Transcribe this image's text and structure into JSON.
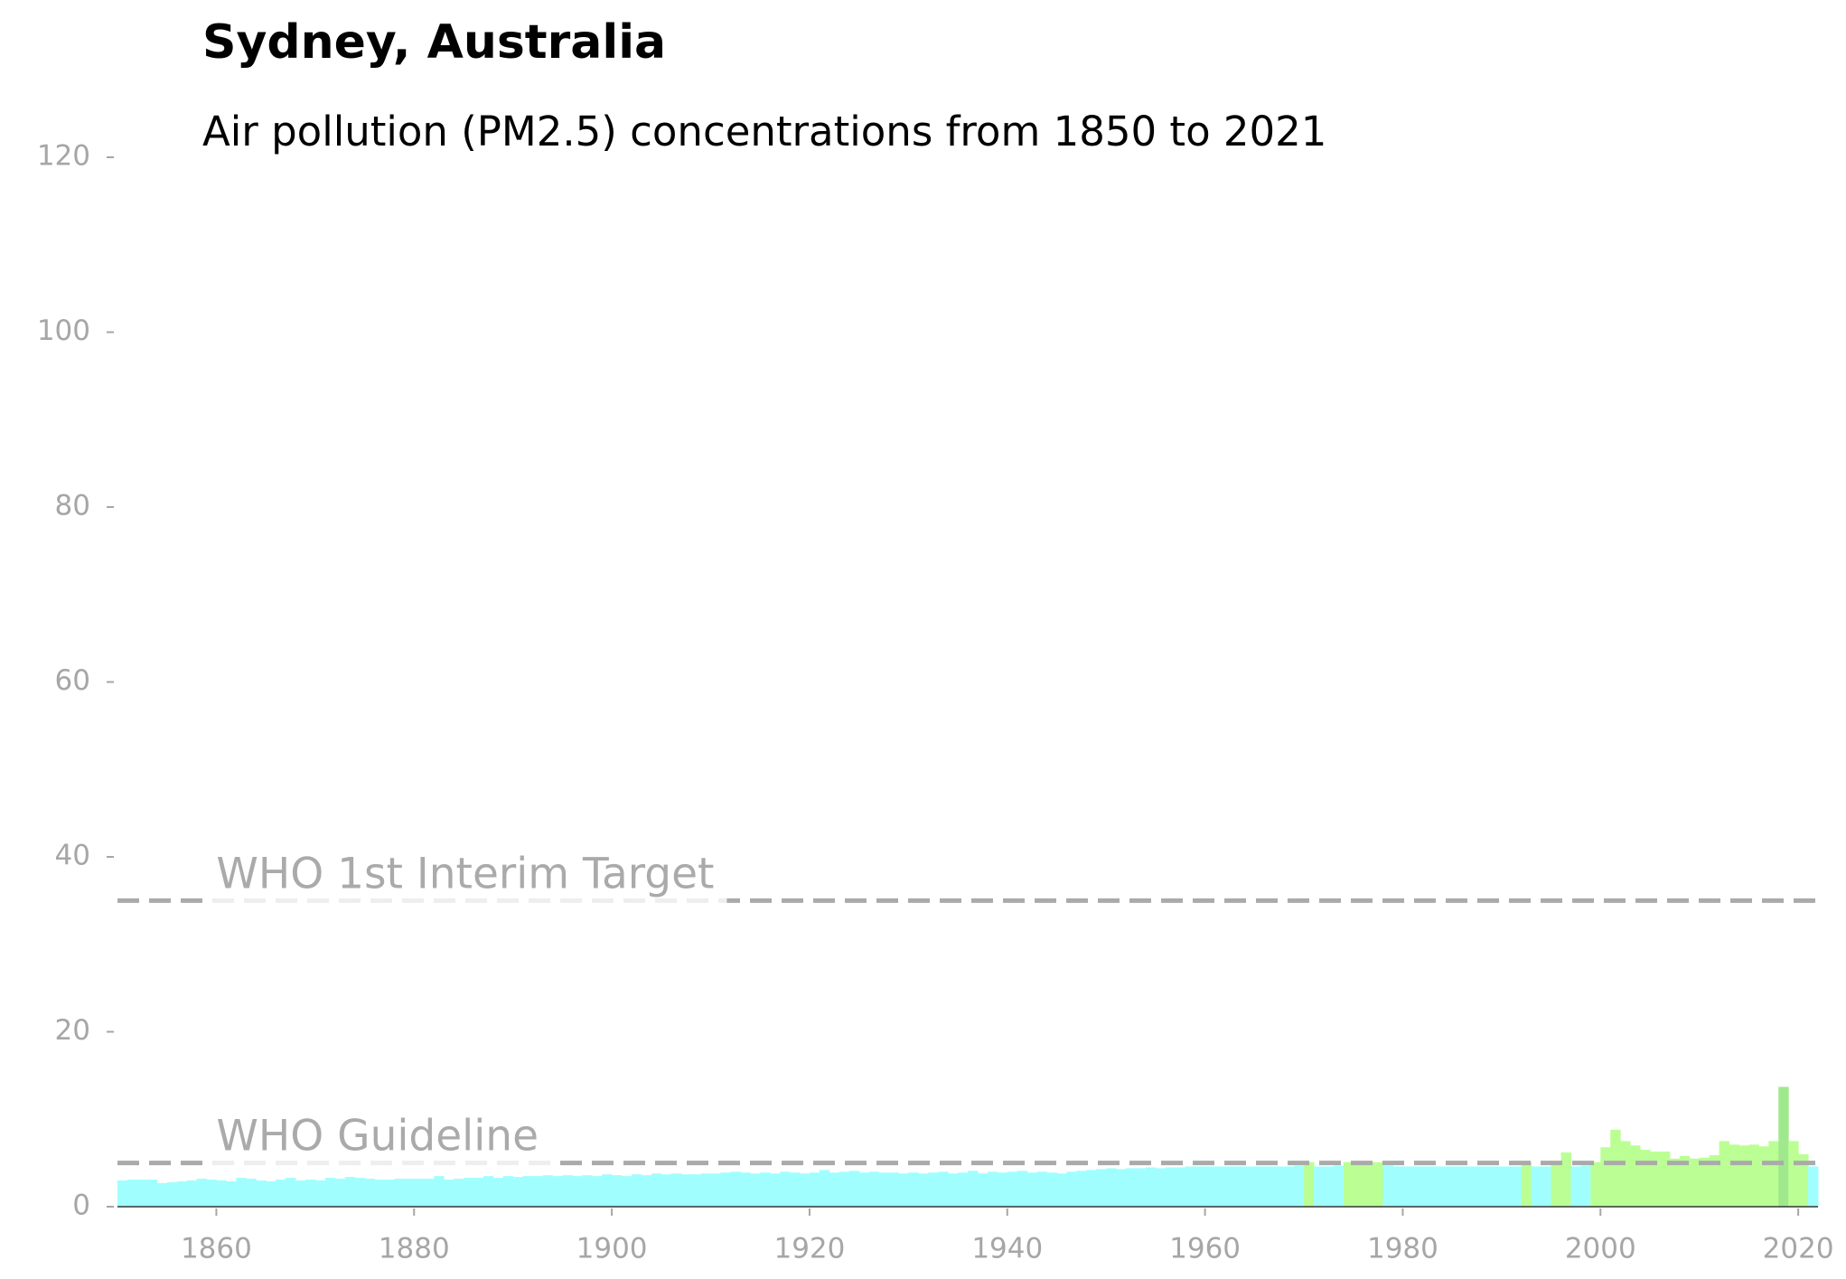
{
  "chart_data": {
    "type": "bar",
    "title": "Sydney, Australia",
    "subtitle": "Air pollution (PM2.5) concentrations from 1850 to 2021",
    "x": [
      1850,
      1851,
      1852,
      1853,
      1854,
      1855,
      1856,
      1857,
      1858,
      1859,
      1860,
      1861,
      1862,
      1863,
      1864,
      1865,
      1866,
      1867,
      1868,
      1869,
      1870,
      1871,
      1872,
      1873,
      1874,
      1875,
      1876,
      1877,
      1878,
      1879,
      1880,
      1881,
      1882,
      1883,
      1884,
      1885,
      1886,
      1887,
      1888,
      1889,
      1890,
      1891,
      1892,
      1893,
      1894,
      1895,
      1896,
      1897,
      1898,
      1899,
      1900,
      1901,
      1902,
      1903,
      1904,
      1905,
      1906,
      1907,
      1908,
      1909,
      1910,
      1911,
      1912,
      1913,
      1914,
      1915,
      1916,
      1917,
      1918,
      1919,
      1920,
      1921,
      1922,
      1923,
      1924,
      1925,
      1926,
      1927,
      1928,
      1929,
      1930,
      1931,
      1932,
      1933,
      1934,
      1935,
      1936,
      1937,
      1938,
      1939,
      1940,
      1941,
      1942,
      1943,
      1944,
      1945,
      1946,
      1947,
      1948,
      1949,
      1950,
      1951,
      1952,
      1953,
      1954,
      1955,
      1956,
      1957,
      1958,
      1959,
      1960,
      1961,
      1962,
      1963,
      1964,
      1965,
      1966,
      1967,
      1968,
      1969,
      1970,
      1971,
      1972,
      1973,
      1974,
      1975,
      1976,
      1977,
      1978,
      1979,
      1980,
      1981,
      1982,
      1983,
      1984,
      1985,
      1986,
      1987,
      1988,
      1989,
      1990,
      1991,
      1992,
      1993,
      1994,
      1995,
      1996,
      1997,
      1998,
      1999,
      2000,
      2001,
      2002,
      2003,
      2004,
      2005,
      2006,
      2007,
      2008,
      2009,
      2010,
      2011,
      2012,
      2013,
      2014,
      2015,
      2016,
      2017,
      2018,
      2019,
      2020,
      2021
    ],
    "values": [
      3.0,
      3.1,
      3.1,
      3.1,
      2.7,
      2.8,
      2.9,
      3.0,
      3.2,
      3.1,
      3.0,
      2.9,
      3.3,
      3.2,
      3.0,
      2.9,
      3.1,
      3.3,
      3.0,
      3.1,
      3.0,
      3.3,
      3.2,
      3.4,
      3.3,
      3.2,
      3.1,
      3.1,
      3.2,
      3.2,
      3.2,
      3.2,
      3.5,
      3.1,
      3.2,
      3.3,
      3.3,
      3.5,
      3.3,
      3.5,
      3.4,
      3.5,
      3.5,
      3.6,
      3.5,
      3.6,
      3.5,
      3.6,
      3.5,
      3.7,
      3.6,
      3.5,
      3.7,
      3.6,
      3.8,
      3.7,
      3.8,
      3.7,
      3.7,
      3.8,
      3.8,
      3.9,
      4.0,
      3.9,
      3.8,
      3.9,
      3.8,
      4.0,
      3.9,
      3.8,
      3.9,
      4.2,
      3.9,
      4.0,
      4.1,
      3.9,
      4.0,
      3.9,
      3.9,
      3.8,
      3.9,
      3.8,
      3.9,
      4.0,
      3.8,
      3.9,
      4.1,
      3.8,
      4.0,
      3.9,
      4.0,
      4.1,
      3.9,
      4.0,
      3.9,
      3.8,
      4.0,
      4.1,
      4.2,
      4.3,
      4.4,
      4.3,
      4.4,
      4.4,
      4.5,
      4.4,
      4.5,
      4.5,
      4.6,
      4.6,
      4.6,
      4.6,
      4.6,
      4.6,
      4.6,
      4.6,
      4.6,
      4.6,
      4.6,
      4.7,
      5.1,
      4.6,
      4.6,
      4.7,
      5.1,
      5.1,
      5.1,
      5.1,
      4.7,
      4.6,
      4.6,
      4.6,
      4.6,
      4.6,
      4.6,
      4.6,
      4.6,
      4.6,
      4.6,
      4.6,
      4.6,
      4.6,
      5.1,
      4.6,
      4.6,
      5.1,
      6.2,
      4.6,
      4.7,
      5.1,
      6.8,
      8.8,
      7.5,
      7.0,
      6.5,
      6.3,
      6.3,
      5.5,
      5.8,
      5.5,
      5.6,
      5.9,
      7.5,
      7.1,
      7.0,
      7.1,
      6.9,
      7.5,
      13.7,
      7.5,
      6.0,
      4.6
    ],
    "colors": [
      "#a0fffe",
      "#a0fffe",
      "#a0fffe",
      "#a0fffe",
      "#a0fffe",
      "#a0fffe",
      "#a0fffe",
      "#a0fffe",
      "#a0fffe",
      "#a0fffe",
      "#a0fffe",
      "#a0fffe",
      "#a0fffe",
      "#a0fffe",
      "#a0fffe",
      "#a0fffe",
      "#a0fffe",
      "#a0fffe",
      "#a0fffe",
      "#a0fffe",
      "#a0fffe",
      "#a0fffe",
      "#a0fffe",
      "#a0fffe",
      "#a0fffe",
      "#a0fffe",
      "#a0fffe",
      "#a0fffe",
      "#a0fffe",
      "#a0fffe",
      "#a0fffe",
      "#a0fffe",
      "#a0fffe",
      "#a0fffe",
      "#a0fffe",
      "#a0fffe",
      "#a0fffe",
      "#a0fffe",
      "#a0fffe",
      "#a0fffe",
      "#a0fffe",
      "#a0fffe",
      "#a0fffe",
      "#a0fffe",
      "#a0fffe",
      "#a0fffe",
      "#a0fffe",
      "#a0fffe",
      "#a0fffe",
      "#a0fffe",
      "#a0fffe",
      "#a0fffe",
      "#a0fffe",
      "#a0fffe",
      "#a0fffe",
      "#a0fffe",
      "#a0fffe",
      "#a0fffe",
      "#a0fffe",
      "#a0fffe",
      "#a0fffe",
      "#a0fffe",
      "#a0fffe",
      "#a0fffe",
      "#a0fffe",
      "#a0fffe",
      "#a0fffe",
      "#a0fffe",
      "#a0fffe",
      "#a0fffe",
      "#a0fffe",
      "#a0fffe",
      "#a0fffe",
      "#a0fffe",
      "#a0fffe",
      "#a0fffe",
      "#a0fffe",
      "#a0fffe",
      "#a0fffe",
      "#a0fffe",
      "#a0fffe",
      "#a0fffe",
      "#a0fffe",
      "#a0fffe",
      "#a0fffe",
      "#a0fffe",
      "#a0fffe",
      "#a0fffe",
      "#a0fffe",
      "#a0fffe",
      "#a0fffe",
      "#a0fffe",
      "#a0fffe",
      "#a0fffe",
      "#a0fffe",
      "#a0fffe",
      "#a0fffe",
      "#a0fffe",
      "#a0fffe",
      "#a0fffe",
      "#a0fffe",
      "#a0fffe",
      "#a0fffe",
      "#a0fffe",
      "#a0fffe",
      "#a0fffe",
      "#a0fffe",
      "#a0fffe",
      "#a0fffe",
      "#a0fffe",
      "#a0fffe",
      "#a0fffe",
      "#a0fffe",
      "#a0fffe",
      "#a0fffe",
      "#a0fffe",
      "#a0fffe",
      "#a0fffe",
      "#a0fffe",
      "#a0fffe",
      "#bbff94",
      "#a0fffe",
      "#a0fffe",
      "#a0fffe",
      "#bbff94",
      "#bbff94",
      "#bbff94",
      "#bbff94",
      "#a0fffe",
      "#a0fffe",
      "#a0fffe",
      "#a0fffe",
      "#a0fffe",
      "#a0fffe",
      "#a0fffe",
      "#a0fffe",
      "#a0fffe",
      "#a0fffe",
      "#a0fffe",
      "#a0fffe",
      "#a0fffe",
      "#a0fffe",
      "#bbff94",
      "#a0fffe",
      "#a0fffe",
      "#bbff94",
      "#bbff94",
      "#a0fffe",
      "#a0fffe",
      "#bbff94",
      "#bbff94",
      "#bbff94",
      "#bbff94",
      "#bbff94",
      "#bbff94",
      "#bbff94",
      "#bbff94",
      "#bbff94",
      "#bbff94",
      "#bbff94",
      "#bbff94",
      "#bbff94",
      "#bbff94",
      "#bbff94",
      "#bbff94",
      "#bbff94",
      "#bbff94",
      "#bbff94",
      "#a0e88d",
      "#bbff94",
      "#bbff94",
      "#a0fffe"
    ],
    "xlim": [
      1850,
      2022
    ],
    "xticks": [
      1860,
      1880,
      1900,
      1920,
      1940,
      1960,
      1980,
      2000,
      2020
    ],
    "ylim": [
      0,
      120
    ],
    "yticks": [
      0,
      20,
      40,
      60,
      80,
      100,
      120
    ],
    "reference_lines": [
      {
        "label": "WHO Guideline",
        "value": 5
      },
      {
        "label": "WHO 1st Interim Target",
        "value": 35
      }
    ],
    "reference_color": "#aaaaaa"
  }
}
